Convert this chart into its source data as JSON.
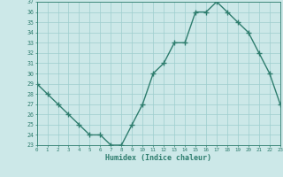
{
  "xlabel": "Humidex (Indice chaleur)",
  "ylabel": "",
  "x": [
    0,
    1,
    2,
    3,
    4,
    5,
    6,
    7,
    8,
    9,
    10,
    11,
    12,
    13,
    14,
    15,
    16,
    17,
    18,
    19,
    20,
    21,
    22,
    23
  ],
  "y": [
    29,
    28,
    27,
    26,
    25,
    24,
    24,
    23,
    23,
    25,
    27,
    30,
    31,
    33,
    33,
    36,
    36,
    37,
    36,
    35,
    34,
    32,
    30,
    27
  ],
  "line_color": "#2e7d6e",
  "marker": "+",
  "marker_color": "#2e7d6e",
  "bg_color": "#cce8e8",
  "grid_color": "#9ecece",
  "axis_color": "#2e7d6e",
  "tick_color": "#2e7d6e",
  "ylim": [
    23,
    37
  ],
  "xlim": [
    0,
    23
  ],
  "yticks": [
    23,
    24,
    25,
    26,
    27,
    28,
    29,
    30,
    31,
    32,
    33,
    34,
    35,
    36,
    37
  ],
  "xticks": [
    0,
    1,
    2,
    3,
    4,
    5,
    6,
    7,
    8,
    9,
    10,
    11,
    12,
    13,
    14,
    15,
    16,
    17,
    18,
    19,
    20,
    21,
    22,
    23
  ],
  "font_color": "#2e7d6e",
  "linewidth": 1.0,
  "markersize": 4.5
}
